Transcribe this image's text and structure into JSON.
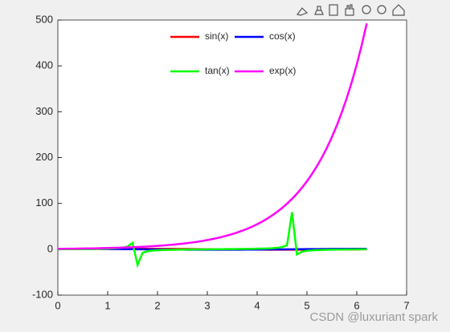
{
  "chart_data": {
    "type": "line",
    "x": [
      0,
      0.1,
      0.2,
      0.3,
      0.4,
      0.5,
      0.6,
      0.7,
      0.8,
      0.9,
      1.0,
      1.1,
      1.2,
      1.3,
      1.4,
      1.5,
      1.6,
      1.7,
      1.8,
      1.9,
      2.0,
      2.1,
      2.2,
      2.3,
      2.4,
      2.5,
      2.6,
      2.7,
      2.8,
      2.9,
      3.0,
      3.1,
      3.2,
      3.3,
      3.4,
      3.5,
      3.6,
      3.7,
      3.8,
      3.9,
      4.0,
      4.1,
      4.2,
      4.3,
      4.4,
      4.5,
      4.6,
      4.7,
      4.8,
      4.9,
      5.0,
      5.1,
      5.2,
      5.3,
      5.4,
      5.5,
      5.6,
      5.7,
      5.8,
      5.9,
      6.0,
      6.1,
      6.2
    ],
    "series": [
      {
        "name": "sin(x)",
        "color": "#ff0000",
        "values": [
          0,
          0.1,
          0.2,
          0.3,
          0.39,
          0.48,
          0.56,
          0.64,
          0.72,
          0.78,
          0.84,
          0.89,
          0.93,
          0.96,
          0.99,
          1.0,
          1.0,
          0.99,
          0.97,
          0.95,
          0.91,
          0.86,
          0.81,
          0.75,
          0.68,
          0.6,
          0.52,
          0.43,
          0.33,
          0.24,
          0.14,
          0.04,
          -0.06,
          -0.16,
          -0.26,
          -0.35,
          -0.44,
          -0.53,
          -0.61,
          -0.69,
          -0.76,
          -0.82,
          -0.87,
          -0.92,
          -0.95,
          -0.98,
          -0.99,
          -1.0,
          -1.0,
          -0.98,
          -0.96,
          -0.93,
          -0.88,
          -0.83,
          -0.77,
          -0.71,
          -0.63,
          -0.55,
          -0.46,
          -0.37,
          -0.28,
          -0.18,
          -0.08
        ]
      },
      {
        "name": "cos(x)",
        "color": "#0000ff",
        "values": [
          1,
          1.0,
          0.98,
          0.96,
          0.92,
          0.88,
          0.83,
          0.76,
          0.7,
          0.62,
          0.54,
          0.45,
          0.36,
          0.27,
          0.17,
          0.07,
          -0.03,
          -0.13,
          -0.23,
          -0.32,
          -0.42,
          -0.5,
          -0.59,
          -0.67,
          -0.74,
          -0.8,
          -0.86,
          -0.9,
          -0.94,
          -0.97,
          -0.99,
          -1.0,
          -1.0,
          -0.99,
          -0.97,
          -0.94,
          -0.9,
          -0.85,
          -0.79,
          -0.73,
          -0.65,
          -0.57,
          -0.49,
          -0.4,
          -0.31,
          -0.21,
          -0.11,
          -0.01,
          0.09,
          0.19,
          0.28,
          0.38,
          0.47,
          0.55,
          0.63,
          0.71,
          0.78,
          0.83,
          0.89,
          0.93,
          0.96,
          0.98,
          1.0
        ]
      },
      {
        "name": "tan(x)",
        "color": "#00ff00",
        "values": [
          0,
          0.1,
          0.2,
          0.31,
          0.42,
          0.55,
          0.68,
          0.84,
          1.03,
          1.26,
          1.56,
          1.96,
          2.57,
          3.6,
          5.8,
          14.1,
          -34.23,
          -7.7,
          -4.29,
          -2.93,
          -2.19,
          -1.71,
          -1.37,
          -1.12,
          -0.92,
          -0.75,
          -0.6,
          -0.47,
          -0.36,
          -0.24,
          -0.14,
          -0.04,
          0.06,
          0.16,
          0.26,
          0.37,
          0.49,
          0.62,
          0.77,
          0.95,
          1.16,
          1.43,
          1.78,
          2.28,
          3.1,
          4.64,
          8.86,
          80.71,
          -11.38,
          -5.27,
          -3.38,
          -2.44,
          -1.89,
          -1.5,
          -1.22,
          -1.0,
          -0.81,
          -0.66,
          -0.52,
          -0.4,
          -0.29,
          -0.18,
          -0.08
        ]
      },
      {
        "name": "exp(x)",
        "color": "#ff00ff",
        "values": [
          1,
          1.1,
          1.2,
          1.3,
          1.5,
          1.6,
          1.8,
          2.0,
          2.2,
          2.5,
          2.7,
          3.0,
          3.3,
          3.7,
          4.1,
          4.5,
          5.0,
          5.5,
          6.0,
          6.7,
          7.4,
          8.2,
          9.0,
          10.0,
          11.0,
          12.2,
          13.5,
          14.9,
          16.4,
          18.2,
          20.1,
          22.2,
          24.5,
          27.1,
          30.0,
          33.1,
          36.6,
          40.4,
          44.7,
          49.4,
          54.6,
          60.3,
          66.7,
          73.7,
          81.5,
          90.0,
          99.5,
          110.0,
          121.5,
          134.3,
          148.4,
          164.0,
          181.3,
          200.3,
          221.4,
          244.7,
          270.4,
          298.9,
          330.3,
          365.0,
          403.4,
          445.9,
          492.7
        ]
      }
    ],
    "xlim": [
      0,
      7
    ],
    "xticks": [
      0,
      1,
      2,
      3,
      4,
      5,
      6,
      7
    ],
    "ylim": [
      -100,
      500
    ],
    "yticks": [
      -100,
      0,
      100,
      200,
      300,
      400,
      500
    ],
    "legend": "top",
    "watermark": "CSDN @luxuriant spark"
  }
}
